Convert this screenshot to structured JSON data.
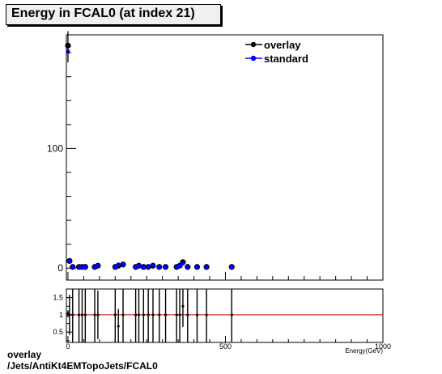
{
  "title": "Energy in FCAL0 (at index 21)",
  "footer": {
    "line1": "overlay",
    "line2": "/Jets/AntiKt4EMTopoJets/FCAL0"
  },
  "colors": {
    "overlay": "#000000",
    "standard": "#0000ff",
    "ratio_line": "#cc0000"
  },
  "chart_data": [
    {
      "type": "scatter",
      "xlabel": "Energy(GeV)",
      "ylabel": "",
      "xlim": [
        -5,
        1000
      ],
      "ylim": [
        -10,
        195
      ],
      "y_ticks": [
        "0",
        "100"
      ],
      "legend": "top-right",
      "grid": false,
      "series": [
        {
          "name": "overlay",
          "x": [
            0,
            5,
            15,
            35,
            45,
            55,
            85,
            95,
            150,
            160,
            175,
            215,
            225,
            240,
            255,
            270,
            290,
            310,
            345,
            355,
            365,
            380,
            410,
            440,
            520
          ],
          "y": [
            186,
            6,
            1,
            1,
            1,
            1,
            1,
            2,
            1,
            2,
            3,
            1,
            2,
            1,
            1,
            2,
            1,
            1,
            1,
            2,
            5,
            1,
            1,
            1,
            1
          ]
        },
        {
          "name": "standard",
          "x": [
            0,
            5,
            15,
            35,
            45,
            55,
            85,
            95,
            150,
            160,
            175,
            215,
            225,
            240,
            255,
            270,
            290,
            310,
            345,
            355,
            365,
            380,
            410,
            440,
            520
          ],
          "y": [
            181,
            6,
            1,
            1,
            1,
            1,
            1,
            2,
            1,
            3,
            3,
            1,
            2,
            1,
            1,
            2,
            1,
            1,
            1,
            2,
            4,
            1,
            1,
            1,
            1
          ]
        }
      ]
    },
    {
      "type": "scatter",
      "xlabel": "Energy(GeV)",
      "ylabel": "",
      "xlim": [
        -5,
        1000
      ],
      "ylim": [
        0.2,
        1.75
      ],
      "x_ticks": [
        "0",
        "500",
        "1000"
      ],
      "y_ticks": [
        "0.5",
        "1",
        "1.5"
      ],
      "reference_line": 1,
      "series": [
        {
          "name": "ratio",
          "x": [
            0,
            5,
            15,
            35,
            45,
            55,
            85,
            95,
            150,
            160,
            175,
            215,
            225,
            240,
            255,
            270,
            290,
            310,
            345,
            355,
            365,
            380,
            410,
            440,
            520
          ],
          "y": [
            1.03,
            1,
            1,
            1,
            1,
            1,
            1,
            1,
            1,
            0.67,
            1,
            1,
            1,
            1,
            1,
            1,
            1,
            1,
            1,
            1,
            1.25,
            1,
            1,
            1,
            1
          ],
          "err": [
            0.1,
            0.58,
            1,
            1,
            1,
            1,
            1,
            0.7,
            1,
            0.5,
            0.8,
            1,
            0.9,
            1,
            1,
            0.8,
            1,
            1,
            1,
            0.8,
            0.6,
            1,
            1,
            1,
            1
          ]
        }
      ]
    }
  ]
}
